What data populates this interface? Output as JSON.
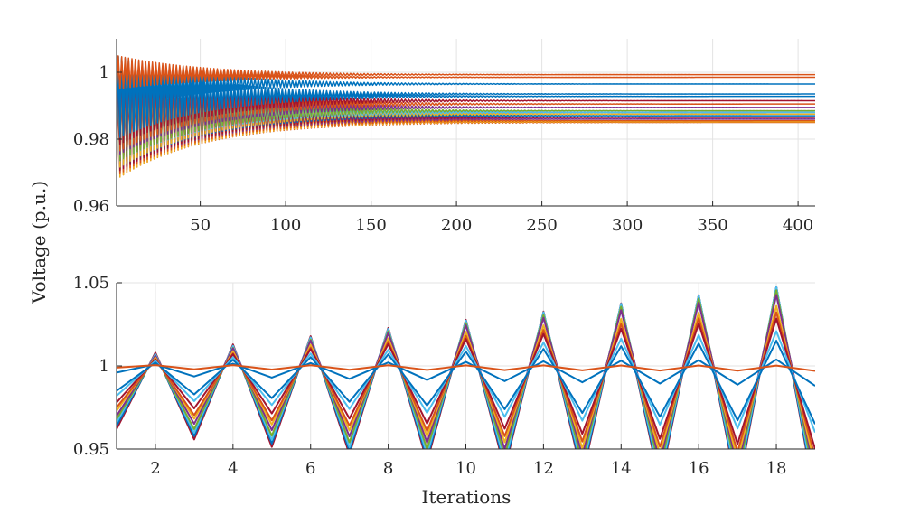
{
  "chart_data": {
    "type": "line",
    "ylabel": "Voltage (p.u.)",
    "xlabel": "Iterations",
    "grid": true,
    "series_colors": [
      "#0072BD",
      "#D95319",
      "#EDB120",
      "#7E2F8E",
      "#77AC30",
      "#4DBEEE",
      "#A2142F"
    ],
    "panels": [
      {
        "name": "top",
        "xlim": [
          1,
          410
        ],
        "ylim": [
          0.96,
          1.01
        ],
        "xticks": [
          50,
          100,
          150,
          200,
          250,
          300,
          350,
          400
        ],
        "yticks": [
          0.96,
          0.98,
          1.0
        ],
        "ytick_labels": [
          "0.96",
          "0.98",
          "1"
        ],
        "oscillation_decay_iterations": 50,
        "series": [
          {
            "color": "#D95319",
            "final": 0.9993,
            "start_amp": 0.005,
            "start_mid": 1.0
          },
          {
            "color": "#D95319",
            "final": 0.9985,
            "start_amp": 0.004,
            "start_mid": 0.999
          },
          {
            "color": "#0072BD",
            "final": 0.9965,
            "start_amp": 0.008,
            "start_mid": 0.997
          },
          {
            "color": "#0072BD",
            "final": 0.9935,
            "start_amp": 0.012,
            "start_mid": 0.993
          },
          {
            "color": "#0072BD",
            "final": 0.9928,
            "start_amp": 0.012,
            "start_mid": 0.992
          },
          {
            "color": "#A2142F",
            "final": 0.9915,
            "start_amp": 0.013,
            "start_mid": 0.991
          },
          {
            "color": "#D95319",
            "final": 0.9905,
            "start_amp": 0.014,
            "start_mid": 0.99
          },
          {
            "color": "#7E2F8E",
            "final": 0.9895,
            "start_amp": 0.014,
            "start_mid": 0.989
          },
          {
            "color": "#77AC30",
            "final": 0.9885,
            "start_amp": 0.015,
            "start_mid": 0.988
          },
          {
            "color": "#4DBEEE",
            "final": 0.988,
            "start_amp": 0.015,
            "start_mid": 0.988
          },
          {
            "color": "#EDB120",
            "final": 0.9875,
            "start_amp": 0.016,
            "start_mid": 0.987
          },
          {
            "color": "#0072BD",
            "final": 0.987,
            "start_amp": 0.016,
            "start_mid": 0.987
          },
          {
            "color": "#A2142F",
            "final": 0.9865,
            "start_amp": 0.016,
            "start_mid": 0.986
          },
          {
            "color": "#7E2F8E",
            "final": 0.986,
            "start_amp": 0.016,
            "start_mid": 0.986
          },
          {
            "color": "#D95319",
            "final": 0.9855,
            "start_amp": 0.017,
            "start_mid": 0.986
          },
          {
            "color": "#EDB120",
            "final": 0.9852,
            "start_amp": 0.017,
            "start_mid": 0.985
          },
          {
            "color": "#D95319",
            "final": 0.985,
            "start_amp": 0.017,
            "start_mid": 0.985
          },
          {
            "color": "#0072BD",
            "final": 0.988,
            "start_amp": 0.018,
            "start_mid": 0.987
          }
        ]
      },
      {
        "name": "bottom",
        "xlim": [
          1,
          19
        ],
        "ylim": [
          0.95,
          1.05
        ],
        "xticks": [
          2,
          4,
          6,
          8,
          10,
          12,
          14,
          16,
          18
        ],
        "yticks": [
          0.95,
          1.0,
          1.05
        ],
        "ytick_labels": [
          "0.95",
          "1",
          "1.05"
        ],
        "series": [
          {
            "color": "#D95319",
            "peak_start": 0.0005,
            "peak_end": 0.0002,
            "trough_start": 0.002,
            "trough_end": 0.003,
            "first": 0.999
          },
          {
            "color": "#0072BD",
            "peak_start": 0.001,
            "peak_end": 0.004,
            "trough_start": 0.006,
            "trough_end": 0.012,
            "first": 0.996
          },
          {
            "color": "#0072BD",
            "peak_start": 0.002,
            "peak_end": 0.016,
            "trough_start": 0.016,
            "trough_end": 0.035,
            "first": 0.985
          },
          {
            "color": "#4DBEEE",
            "peak_start": 0.003,
            "peak_end": 0.022,
            "trough_start": 0.02,
            "trough_end": 0.04,
            "first": 0.982
          },
          {
            "color": "#A2142F",
            "peak_start": 0.004,
            "peak_end": 0.03,
            "trough_start": 0.024,
            "trough_end": 0.05,
            "first": 0.978
          },
          {
            "color": "#D95319",
            "peak_start": 0.004,
            "peak_end": 0.034,
            "trough_start": 0.028,
            "trough_end": 0.055,
            "first": 0.975
          },
          {
            "color": "#EDB120",
            "peak_start": 0.005,
            "peak_end": 0.038,
            "trough_start": 0.03,
            "trough_end": 0.06,
            "first": 0.973
          },
          {
            "color": "#7E2F8E",
            "peak_start": 0.006,
            "peak_end": 0.045,
            "trough_start": 0.033,
            "trough_end": 0.065,
            "first": 0.97
          },
          {
            "color": "#77AC30",
            "peak_start": 0.006,
            "peak_end": 0.048,
            "trough_start": 0.036,
            "trough_end": 0.07,
            "first": 0.968
          },
          {
            "color": "#4DBEEE",
            "peak_start": 0.007,
            "peak_end": 0.05,
            "trough_start": 0.038,
            "trough_end": 0.075,
            "first": 0.966
          },
          {
            "color": "#0072BD",
            "peak_start": 0.007,
            "peak_end": 0.05,
            "trough_start": 0.04,
            "trough_end": 0.078,
            "first": 0.964
          },
          {
            "color": "#A2142F",
            "peak_start": 0.008,
            "peak_end": 0.05,
            "trough_start": 0.042,
            "trough_end": 0.08,
            "first": 0.962
          }
        ]
      }
    ]
  }
}
